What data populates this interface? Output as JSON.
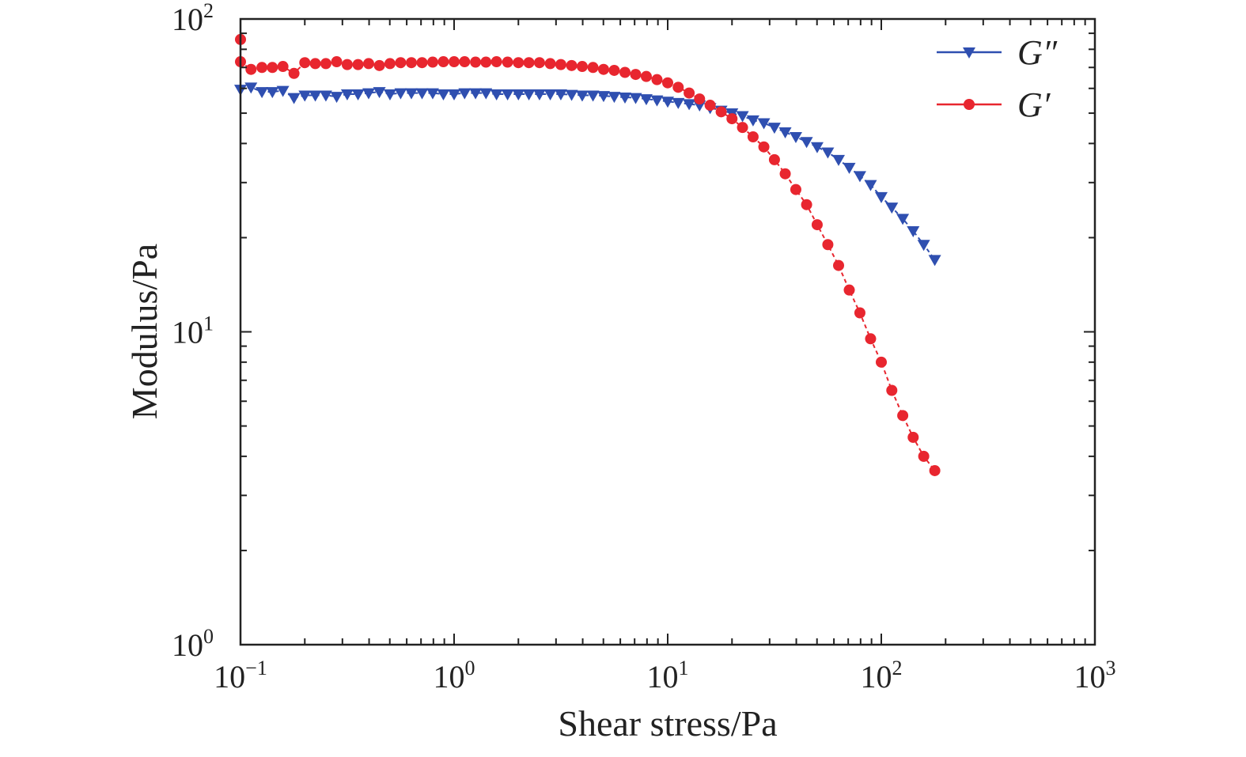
{
  "chart_data": {
    "type": "line",
    "title": "",
    "xlabel": "Shear stress/Pa",
    "ylabel": "Modulus/Pa",
    "x_scale": "log",
    "y_scale": "log",
    "xlim": [
      0.1,
      1000
    ],
    "ylim": [
      1,
      100
    ],
    "grid": false,
    "legend_position": "top-right",
    "x_ticks": [
      {
        "base": "10",
        "exp": "−1",
        "value": 0.1
      },
      {
        "base": "10",
        "exp": "0",
        "value": 1
      },
      {
        "base": "10",
        "exp": "1",
        "value": 10
      },
      {
        "base": "10",
        "exp": "2",
        "value": 100
      },
      {
        "base": "10",
        "exp": "3",
        "value": 1000
      }
    ],
    "y_ticks": [
      {
        "base": "10",
        "exp": "0",
        "value": 1
      },
      {
        "base": "10",
        "exp": "1",
        "value": 10
      },
      {
        "base": "10",
        "exp": "2",
        "value": 100
      }
    ],
    "series": [
      {
        "name": "G″",
        "color": "#2f4fb0",
        "marker": "triangle-down",
        "x": [
          0.1,
          0.112,
          0.126,
          0.141,
          0.158,
          0.178,
          0.2,
          0.224,
          0.251,
          0.282,
          0.316,
          0.355,
          0.398,
          0.447,
          0.501,
          0.562,
          0.631,
          0.708,
          0.794,
          0.891,
          1.0,
          1.12,
          1.26,
          1.41,
          1.58,
          1.78,
          2.0,
          2.24,
          2.51,
          2.82,
          3.16,
          3.55,
          3.98,
          4.47,
          5.01,
          5.62,
          6.31,
          7.08,
          7.94,
          8.91,
          10.0,
          11.2,
          12.6,
          14.1,
          15.8,
          17.8,
          20.0,
          22.4,
          25.1,
          28.2,
          31.6,
          35.5,
          39.8,
          44.7,
          50.1,
          56.2,
          63.1,
          70.8,
          79.4,
          89.1,
          100.0,
          112.0,
          126.0,
          141.0,
          158.0,
          178.0
        ],
        "values": [
          59.5,
          60.5,
          58.5,
          58.5,
          59.0,
          56.0,
          57.0,
          57.0,
          57.0,
          56.5,
          57.5,
          57.5,
          58.0,
          58.5,
          57.5,
          58.0,
          58.0,
          58.0,
          58.0,
          57.5,
          57.5,
          58.0,
          58.0,
          58.0,
          57.5,
          57.5,
          57.5,
          57.5,
          57.5,
          57.5,
          57.5,
          57.3,
          57.0,
          57.0,
          56.8,
          56.5,
          56.2,
          56.0,
          55.5,
          55.0,
          54.5,
          54.0,
          53.5,
          53.0,
          52.0,
          51.0,
          50.0,
          49.0,
          47.5,
          46.5,
          45.0,
          43.5,
          42.0,
          40.5,
          39.0,
          37.5,
          35.5,
          33.5,
          31.5,
          29.5,
          27.0,
          25.0,
          23.0,
          21.0,
          19.0,
          17.0
        ]
      },
      {
        "name": "G′",
        "color": "#e8262f",
        "marker": "circle",
        "x": [
          0.1,
          0.1,
          0.112,
          0.126,
          0.141,
          0.158,
          0.178,
          0.2,
          0.224,
          0.251,
          0.282,
          0.316,
          0.355,
          0.398,
          0.447,
          0.501,
          0.562,
          0.631,
          0.708,
          0.794,
          0.891,
          1.0,
          1.12,
          1.26,
          1.41,
          1.58,
          1.78,
          2.0,
          2.24,
          2.51,
          2.82,
          3.16,
          3.55,
          3.98,
          4.47,
          5.01,
          5.62,
          6.31,
          7.08,
          7.94,
          8.91,
          10.0,
          11.2,
          12.6,
          14.1,
          15.8,
          17.8,
          20.0,
          22.4,
          25.1,
          28.2,
          31.6,
          35.5,
          39.8,
          44.7,
          50.1,
          56.2,
          63.1,
          70.8,
          79.4,
          89.1,
          100.0,
          112.0,
          126.0,
          141.0,
          158.0,
          178.0
        ],
        "values": [
          86.0,
          73.0,
          69.0,
          70.0,
          70.0,
          70.5,
          67.0,
          72.5,
          72.0,
          72.0,
          73.0,
          71.5,
          71.5,
          72.0,
          71.0,
          72.0,
          72.5,
          72.5,
          72.5,
          72.8,
          73.0,
          73.0,
          73.0,
          72.8,
          72.8,
          73.0,
          72.8,
          72.5,
          72.5,
          72.5,
          72.0,
          71.5,
          71.0,
          70.5,
          70.0,
          69.0,
          68.5,
          67.5,
          66.5,
          65.5,
          64.0,
          62.5,
          60.5,
          58.0,
          55.5,
          53.0,
          50.5,
          48.0,
          45.0,
          42.0,
          39.0,
          35.5,
          32.0,
          28.5,
          25.5,
          22.0,
          19.0,
          16.3,
          13.6,
          11.5,
          9.5,
          8.0,
          6.5,
          5.4,
          4.6,
          4.0,
          3.6
        ]
      }
    ]
  }
}
